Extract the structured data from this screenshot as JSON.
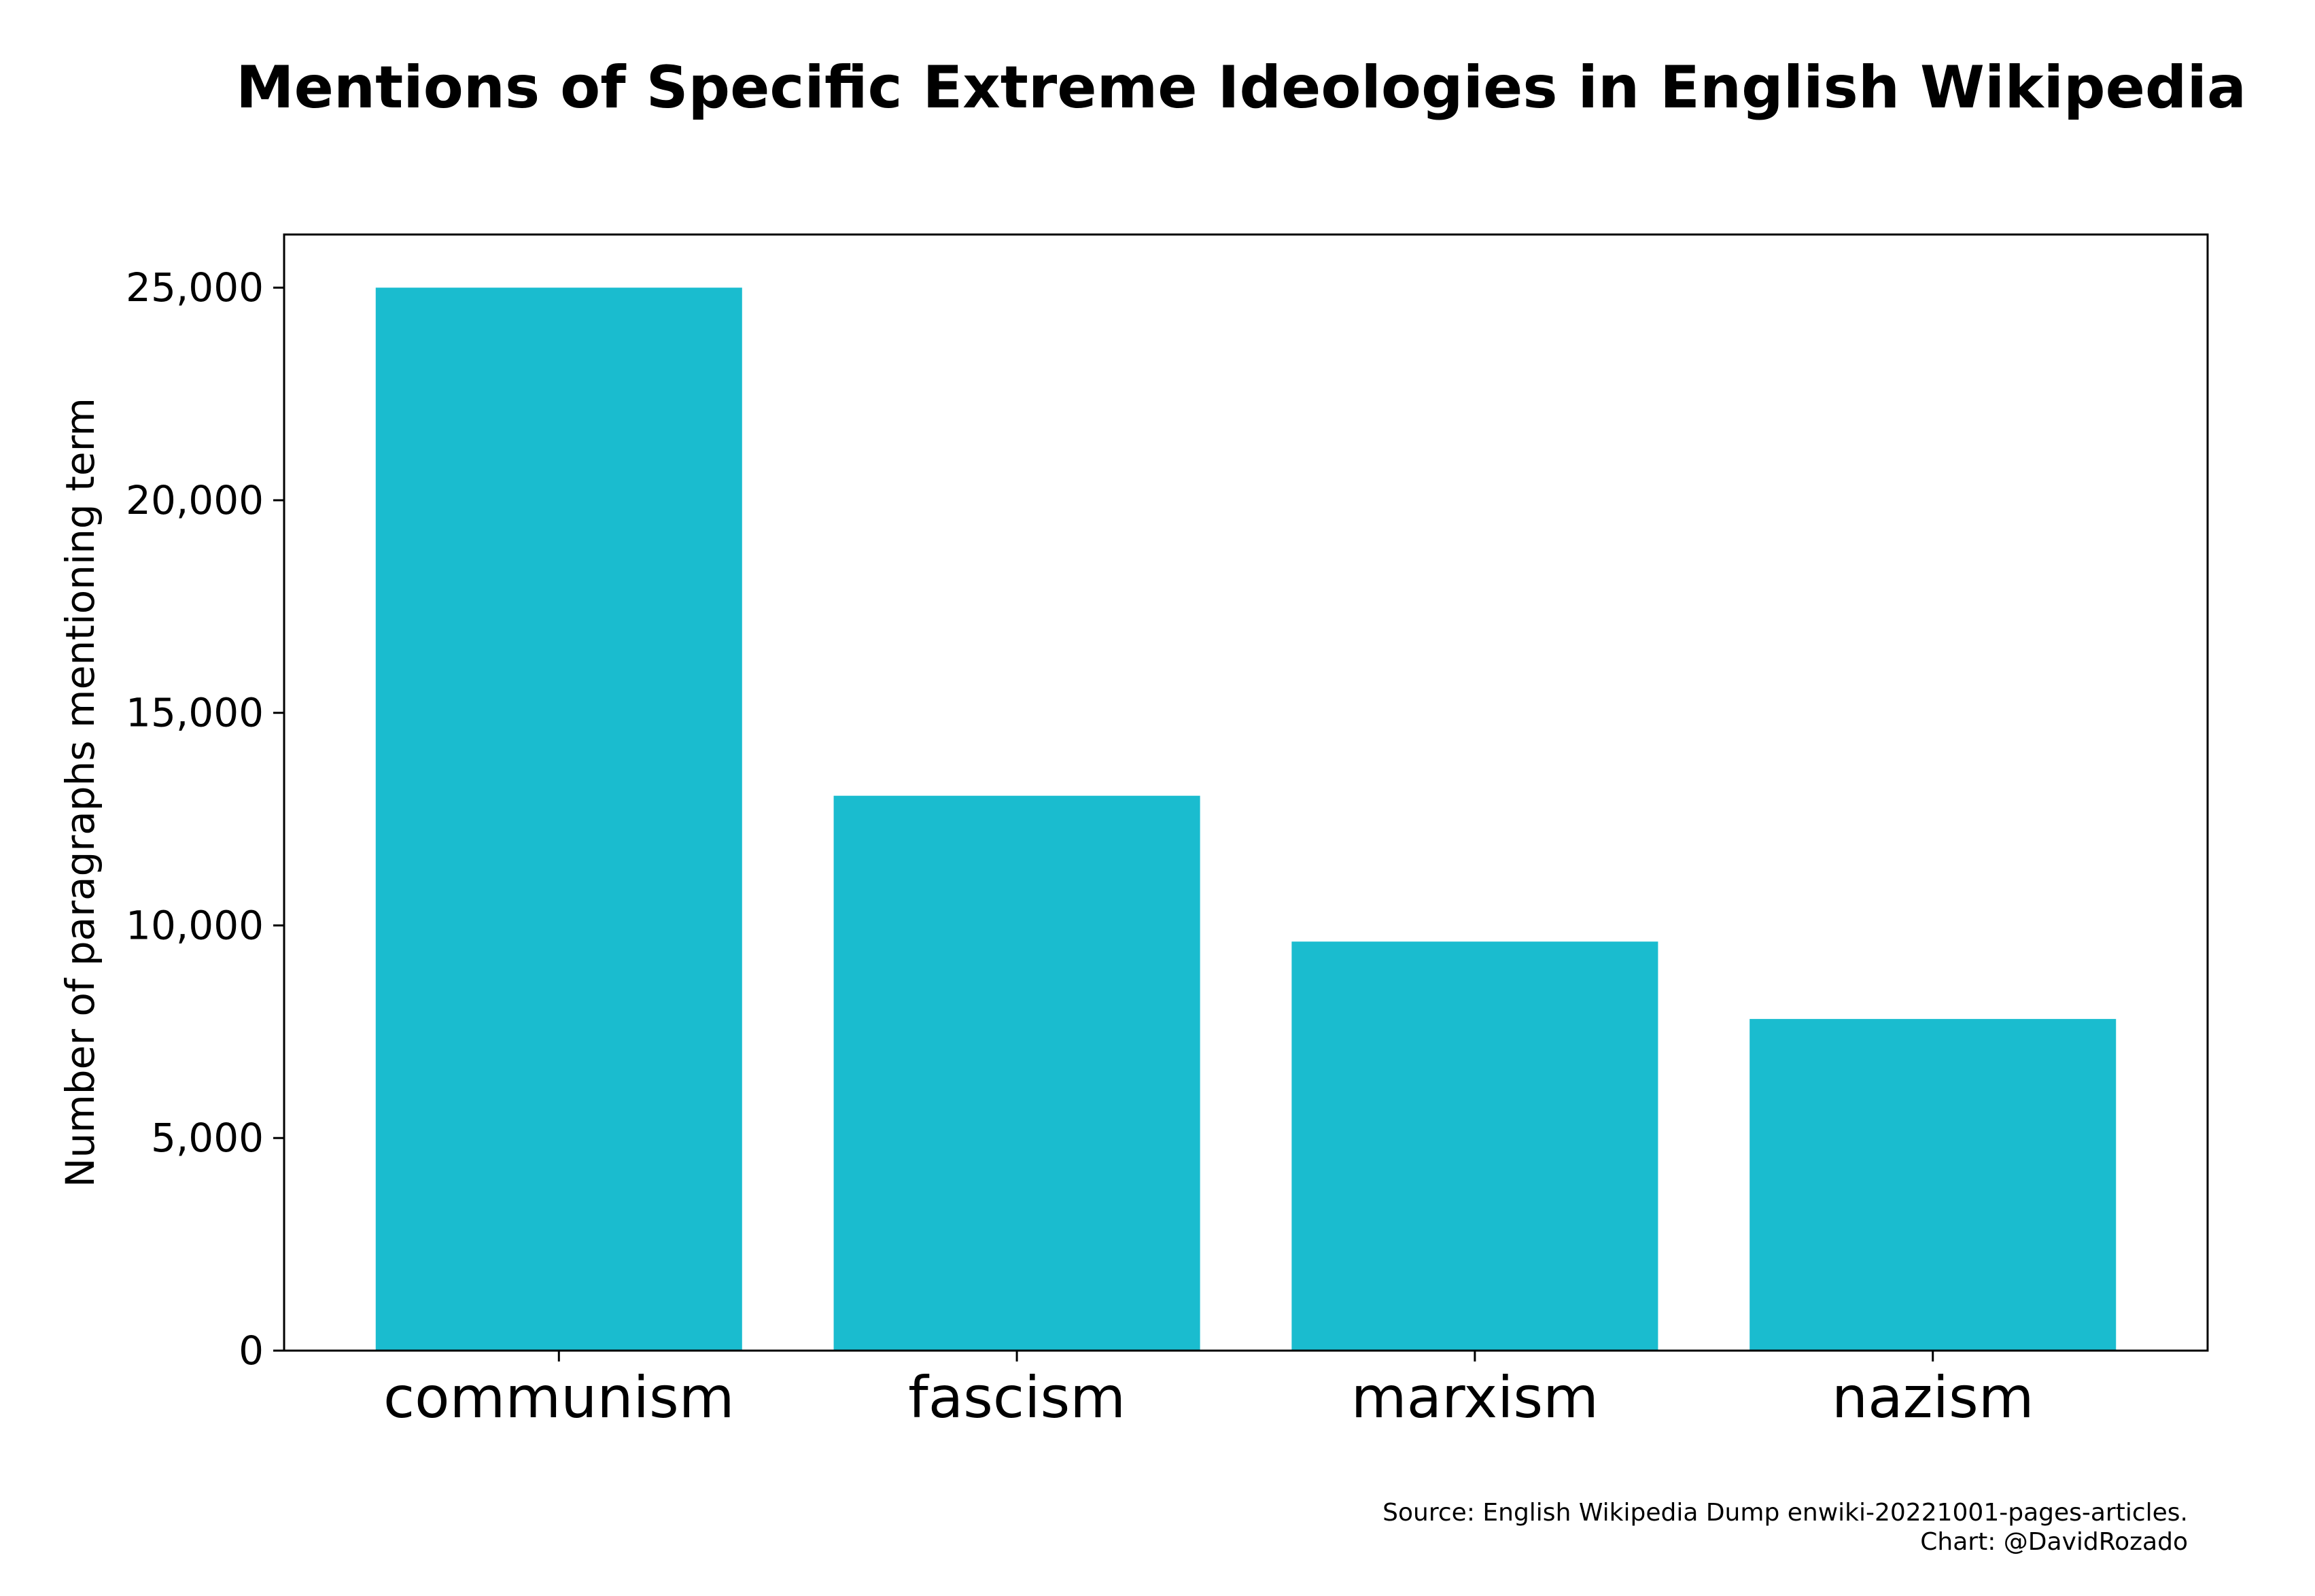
{
  "chart_data": {
    "type": "bar",
    "title": "Mentions of Specific Extreme Ideologies in English Wikipedia",
    "xlabel": "",
    "ylabel": "Number of paragraphs mentioning term",
    "categories": [
      "communism",
      "fascism",
      "marxism",
      "nazism"
    ],
    "values": [
      25000,
      13050,
      9620,
      7800
    ],
    "ylim": [
      0,
      26250
    ],
    "yticks": [
      0,
      5000,
      10000,
      15000,
      20000,
      25000
    ],
    "ytick_labels": [
      "0",
      "5,000",
      "10,000",
      "15,000",
      "20,000",
      "25,000"
    ],
    "bar_color": "#1abccf",
    "grid": false,
    "legend": "none"
  },
  "footer": {
    "source": "Source: English Wikipedia Dump enwiki-20221001-pages-articles.",
    "credit": "Chart: @DavidRozado"
  }
}
